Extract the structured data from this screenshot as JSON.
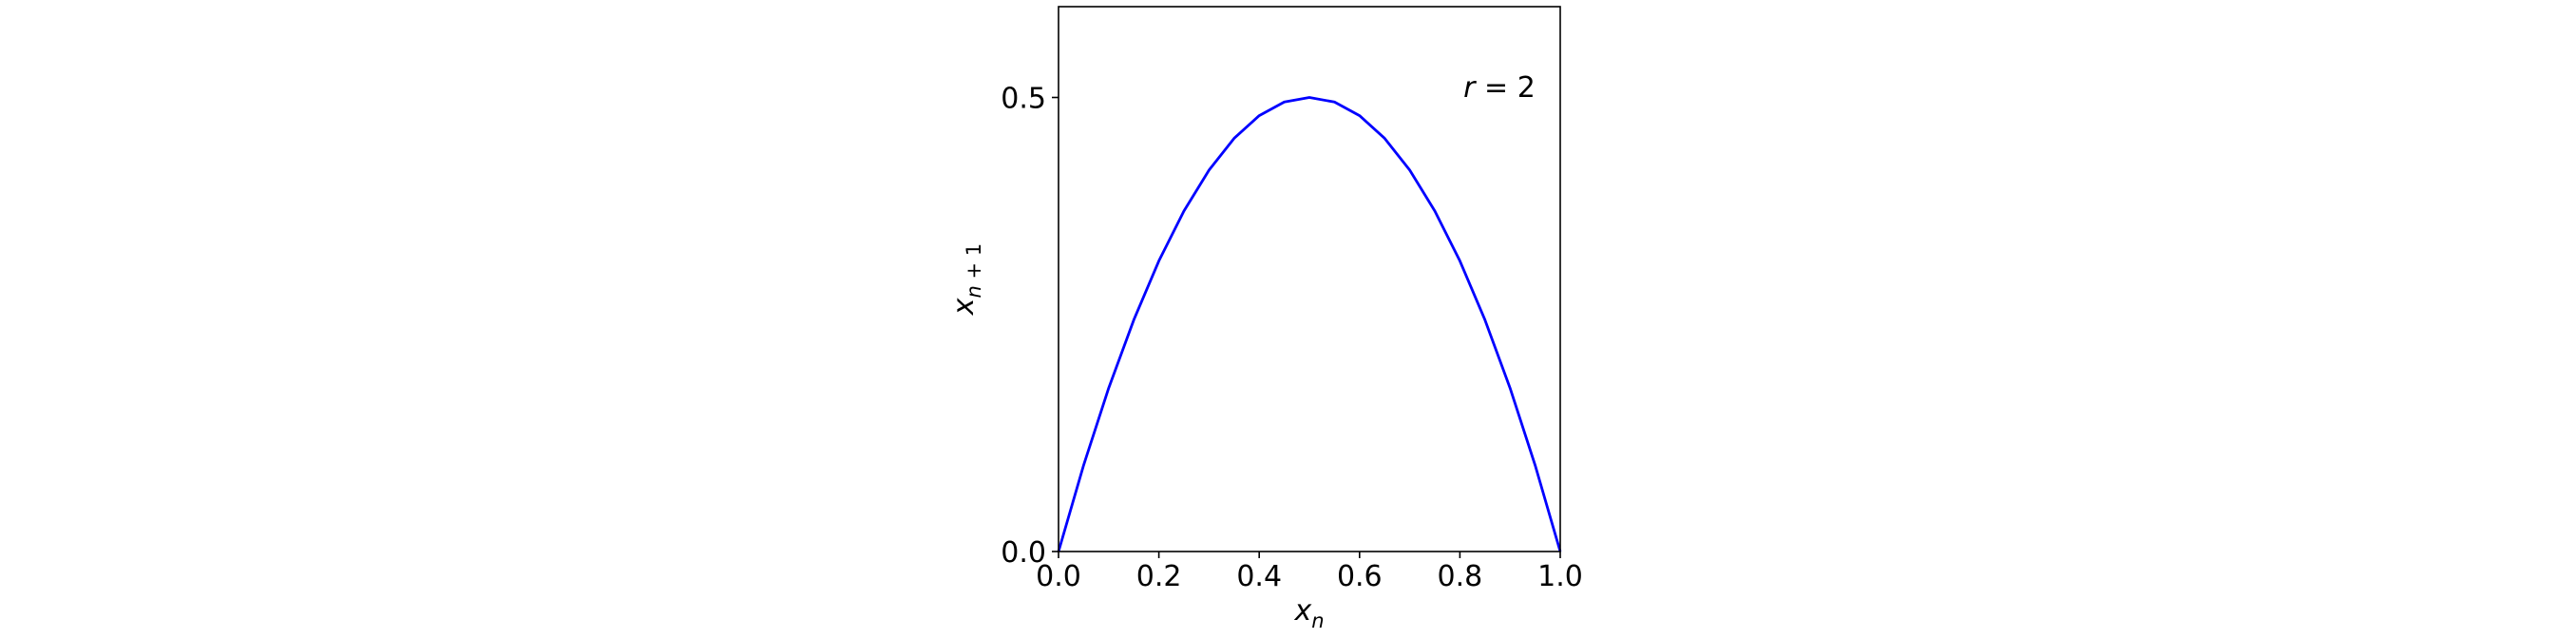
{
  "chart_data": {
    "type": "line",
    "title": "",
    "xlabel": "x_n",
    "ylabel": "x_{n+1}",
    "xlim": [
      0.0,
      1.0
    ],
    "ylim": [
      0.0,
      0.6
    ],
    "xticks": [
      0.0,
      0.2,
      0.4,
      0.6,
      0.8,
      1.0
    ],
    "xtick_labels": [
      "0.0",
      "0.2",
      "0.4",
      "0.6",
      "0.8",
      "1.0"
    ],
    "yticks": [
      0.0,
      0.5
    ],
    "ytick_labels": [
      "0.0",
      "0.5"
    ],
    "grid": false,
    "annotation": "r = 2",
    "series": [
      {
        "color": "#0000ff",
        "x": [
          0.0,
          0.05,
          0.1,
          0.15,
          0.2,
          0.25,
          0.3,
          0.35,
          0.4,
          0.45,
          0.5,
          0.55,
          0.6,
          0.65,
          0.7,
          0.75,
          0.8,
          0.85,
          0.9,
          0.95,
          1.0
        ],
        "y": [
          0.0,
          0.095,
          0.18,
          0.255,
          0.32,
          0.375,
          0.42,
          0.455,
          0.48,
          0.495,
          0.5,
          0.495,
          0.48,
          0.455,
          0.42,
          0.375,
          0.32,
          0.255,
          0.18,
          0.095,
          0.0
        ]
      }
    ]
  }
}
